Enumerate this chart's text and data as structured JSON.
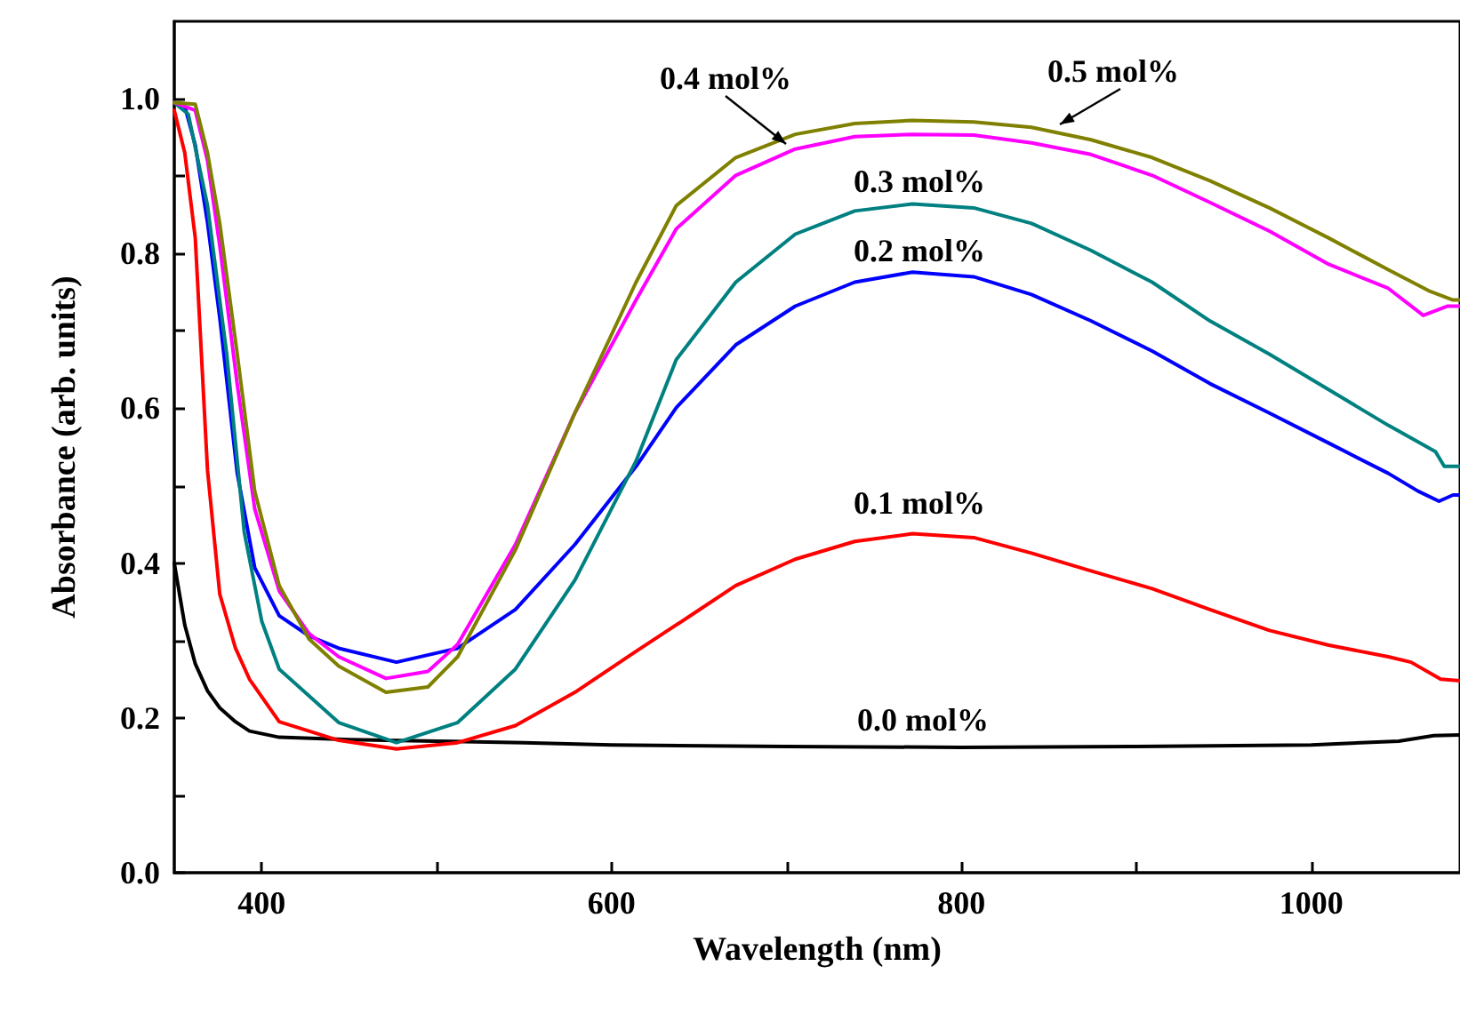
{
  "chart_data": {
    "type": "line",
    "xlabel": "Wavelength (nm)",
    "ylabel": "Absorbance (arb. units)",
    "xlim": [
      350,
      1085
    ],
    "ylim": [
      0,
      1.1
    ],
    "xticks": [
      400,
      {
        "value": 500,
        "label": null
      },
      600,
      {
        "value": 700,
        "label": null
      },
      800,
      {
        "value": 900,
        "label": null
      },
      1000
    ],
    "yticks": [
      {
        "value": 0,
        "label": "0.0"
      },
      {
        "value": 0.1,
        "label": null
      },
      0.2,
      {
        "value": 0.3,
        "label": null
      },
      0.4,
      {
        "value": 0.5,
        "label": null
      },
      0.6,
      {
        "value": 0.7,
        "label": null
      },
      0.8,
      {
        "value": 0.9,
        "label": null
      },
      {
        "value": 1,
        "label": "1.0"
      }
    ],
    "marker": "none",
    "line_style": "solid",
    "series": [
      {
        "name": "0.0 mol%",
        "color": "#000000",
        "x": [
          350,
          356,
          362,
          369,
          376,
          385,
          393,
          410,
          450,
          500,
          550,
          600,
          700,
          800,
          900,
          1000,
          1050,
          1070,
          1085
        ],
        "values": [
          0.4,
          0.32,
          0.27,
          0.235,
          0.213,
          0.195,
          0.183,
          0.175,
          0.172,
          0.17,
          0.168,
          0.165,
          0.163,
          0.162,
          0.163,
          0.165,
          0.17,
          0.177,
          0.178
        ]
      },
      {
        "name": "0.1 mol%",
        "color": "#ff0000",
        "x": [
          350,
          356,
          362,
          369,
          376,
          385,
          393,
          410,
          444,
          477,
          512,
          545,
          579,
          614,
          647,
          671,
          705,
          739,
          772,
          807,
          840,
          874,
          909,
          942,
          976,
          1010,
          1044,
          1057,
          1074,
          1085
        ],
        "values": [
          0.985,
          0.93,
          0.82,
          0.52,
          0.36,
          0.29,
          0.25,
          0.195,
          0.171,
          0.16,
          0.168,
          0.19,
          0.233,
          0.286,
          0.335,
          0.371,
          0.405,
          0.428,
          0.438,
          0.433,
          0.413,
          0.39,
          0.367,
          0.34,
          0.313,
          0.294,
          0.279,
          0.272,
          0.25,
          0.248
        ]
      },
      {
        "name": "0.2 mol%",
        "color": "#0000ff",
        "x": [
          350,
          356,
          362,
          369,
          376,
          386,
          396,
          410,
          427,
          444,
          477,
          512,
          545,
          579,
          614,
          637,
          671,
          705,
          739,
          772,
          807,
          840,
          874,
          909,
          942,
          976,
          1010,
          1044,
          1061,
          1073,
          1081,
          1085
        ],
        "values": [
          0.995,
          0.99,
          0.94,
          0.84,
          0.717,
          0.516,
          0.394,
          0.332,
          0.306,
          0.29,
          0.272,
          0.29,
          0.34,
          0.424,
          0.525,
          0.601,
          0.682,
          0.732,
          0.763,
          0.776,
          0.77,
          0.747,
          0.713,
          0.674,
          0.632,
          0.594,
          0.555,
          0.516,
          0.493,
          0.48,
          0.488,
          0.488
        ]
      },
      {
        "name": "0.3 mol%",
        "color": "#008080",
        "x": [
          350,
          358,
          369,
          380,
          390,
          400,
          410,
          444,
          477,
          512,
          545,
          579,
          614,
          637,
          671,
          705,
          739,
          772,
          807,
          840,
          874,
          909,
          942,
          976,
          1010,
          1044,
          1071,
          1076,
          1085
        ],
        "values": [
          0.995,
          0.98,
          0.862,
          0.67,
          0.44,
          0.325,
          0.263,
          0.194,
          0.168,
          0.194,
          0.263,
          0.378,
          0.532,
          0.663,
          0.763,
          0.825,
          0.855,
          0.864,
          0.859,
          0.839,
          0.804,
          0.763,
          0.713,
          0.67,
          0.624,
          0.578,
          0.544,
          0.525,
          0.525
        ]
      },
      {
        "name": "0.4 mol%",
        "color": "#ff00ff",
        "x": [
          350,
          362,
          369,
          376,
          386,
          396,
          410,
          427,
          444,
          471,
          495,
          512,
          545,
          579,
          614,
          637,
          671,
          705,
          739,
          772,
          807,
          840,
          874,
          909,
          942,
          976,
          1010,
          1044,
          1064,
          1078,
          1085
        ],
        "values": [
          0.995,
          0.985,
          0.92,
          0.81,
          0.631,
          0.47,
          0.364,
          0.309,
          0.279,
          0.251,
          0.26,
          0.295,
          0.424,
          0.594,
          0.74,
          0.832,
          0.901,
          0.935,
          0.951,
          0.954,
          0.953,
          0.943,
          0.928,
          0.901,
          0.866,
          0.829,
          0.786,
          0.755,
          0.72,
          0.732,
          0.732
        ]
      },
      {
        "name": "0.5 mol%",
        "color": "#808000",
        "x": [
          350,
          362,
          369,
          376,
          386,
          396,
          410,
          427,
          444,
          471,
          495,
          512,
          545,
          579,
          614,
          637,
          671,
          705,
          739,
          772,
          807,
          840,
          874,
          909,
          942,
          976,
          1010,
          1044,
          1068,
          1081,
          1085
        ],
        "values": [
          0.995,
          0.993,
          0.93,
          0.839,
          0.67,
          0.493,
          0.371,
          0.302,
          0.267,
          0.233,
          0.24,
          0.279,
          0.417,
          0.594,
          0.763,
          0.862,
          0.924,
          0.954,
          0.968,
          0.972,
          0.97,
          0.963,
          0.947,
          0.924,
          0.894,
          0.859,
          0.82,
          0.779,
          0.751,
          0.74,
          0.74
        ]
      }
    ]
  }
}
